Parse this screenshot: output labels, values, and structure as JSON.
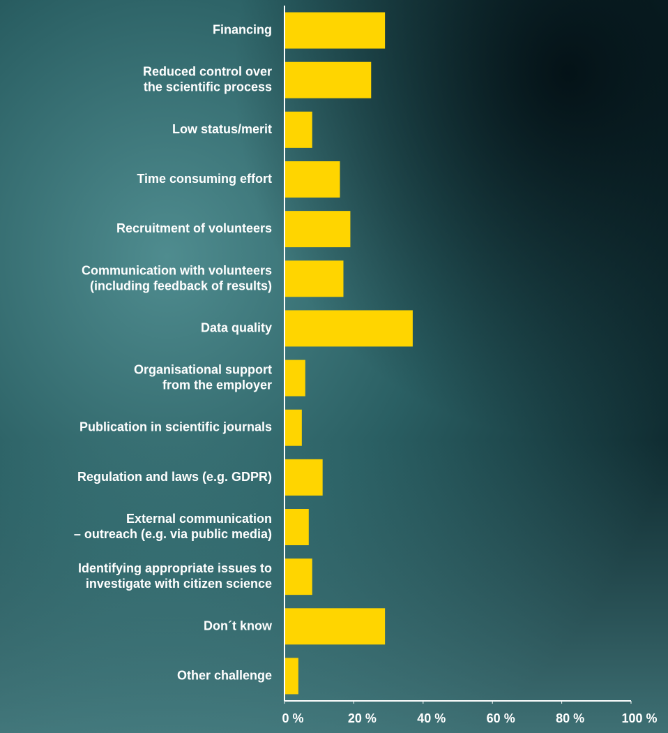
{
  "chart_data": {
    "type": "hbar",
    "categories": [
      "Financing",
      "Reduced control over\nthe scientific process",
      "Low status/merit",
      "Time consuming effort",
      "Recruitment of volunteers",
      "Communication with volunteers\n(including feedback of results)",
      "Data quality ",
      "Organisational support\nfrom the employer",
      "Publication in scientific journals",
      "Regulation and laws (e.g. GDPR)",
      "External communication\n– outreach (e.g. via public media)",
      "Identifying appropriate issues to\ninvestigate with citizen science",
      "Don´t know",
      "Other challenge"
    ],
    "values": [
      29,
      25,
      8,
      16,
      19,
      17,
      37,
      6,
      5,
      11,
      7,
      8,
      29,
      4
    ],
    "color": "#ffd500",
    "xlim": [
      0,
      100
    ],
    "xticks": [
      {
        "value": 0,
        "label": "0 %"
      },
      {
        "value": 20,
        "label": "20 %"
      },
      {
        "value": 40,
        "label": "40 %"
      },
      {
        "value": 60,
        "label": "60 %"
      },
      {
        "value": 80,
        "label": "80 %"
      },
      {
        "value": 100,
        "label": "100 %"
      }
    ]
  }
}
